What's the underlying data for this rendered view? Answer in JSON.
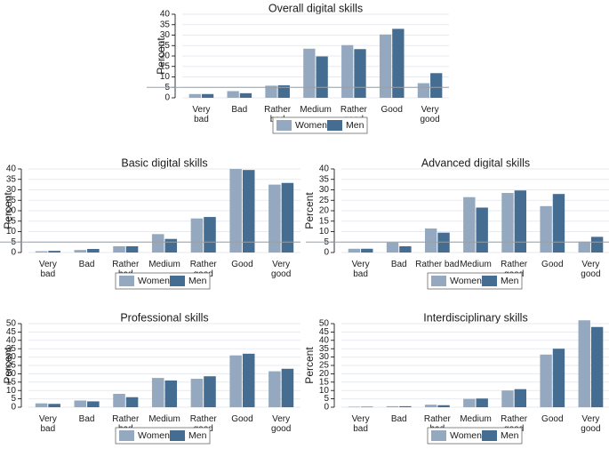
{
  "colors": {
    "women": "#94a8bf",
    "men": "#456c91",
    "grid": "#e6eaef",
    "axis": "#000000",
    "refline": "#9aa0a6"
  },
  "chart_data": [
    {
      "type": "bar",
      "title": "Overall digital skills",
      "ylabel": "Percent",
      "ylim": [
        0,
        40
      ],
      "yticks": [
        0,
        5,
        10,
        15,
        20,
        25,
        30,
        35,
        40
      ],
      "reference_line": 5,
      "categories": [
        [
          "Very",
          "bad"
        ],
        [
          "Bad"
        ],
        [
          "Rather",
          "bad"
        ],
        [
          "Medium"
        ],
        [
          "Rather",
          "good"
        ],
        [
          "Good"
        ],
        [
          "Very",
          "good"
        ]
      ],
      "series": [
        {
          "name": "Women",
          "values": [
            1.8,
            3.2,
            5.8,
            23.5,
            25.2,
            30.3,
            7.0
          ]
        },
        {
          "name": "Men",
          "values": [
            1.8,
            2.2,
            6.0,
            19.8,
            23.3,
            33.0,
            11.8
          ]
        }
      ],
      "legend": "bottom"
    },
    {
      "type": "bar",
      "title": "Basic digital skills",
      "ylabel": "Percent",
      "ylim": [
        0,
        40
      ],
      "yticks": [
        0,
        5,
        10,
        15,
        20,
        25,
        30,
        35,
        40
      ],
      "reference_line": 5,
      "categories": [
        [
          "Very",
          "bad"
        ],
        [
          "Bad"
        ],
        [
          "Rather",
          "bad"
        ],
        [
          "Medium"
        ],
        [
          "Rather",
          "good"
        ],
        [
          "Good"
        ],
        [
          "Very",
          "good"
        ]
      ],
      "series": [
        {
          "name": "Women",
          "values": [
            0.6,
            1.2,
            3.0,
            8.8,
            16.3,
            40.0,
            32.5
          ]
        },
        {
          "name": "Men",
          "values": [
            0.8,
            1.7,
            3.0,
            6.5,
            17.0,
            39.5,
            33.3
          ]
        }
      ],
      "legend": "bottom"
    },
    {
      "type": "bar",
      "title": "Advanced digital skills",
      "ylabel": "Percent",
      "ylim": [
        0,
        40
      ],
      "yticks": [
        0,
        5,
        10,
        15,
        20,
        25,
        30,
        35,
        40
      ],
      "reference_line": 5,
      "categories": [
        [
          "Very",
          "bad"
        ],
        [
          "Bad"
        ],
        [
          "Rather bad"
        ],
        [
          "Medium"
        ],
        [
          "Rather",
          "good"
        ],
        [
          "Good"
        ],
        [
          "Very",
          "good"
        ]
      ],
      "series": [
        {
          "name": "Women",
          "values": [
            1.8,
            4.8,
            11.5,
            26.5,
            28.5,
            22.2,
            5.2
          ]
        },
        {
          "name": "Men",
          "values": [
            1.8,
            3.0,
            9.5,
            21.5,
            29.7,
            28.0,
            7.5
          ]
        }
      ],
      "legend": "bottom"
    },
    {
      "type": "bar",
      "title": "Professional skills",
      "ylabel": "Percent",
      "ylim": [
        0,
        50
      ],
      "yticks": [
        0,
        5,
        10,
        15,
        20,
        25,
        30,
        35,
        40,
        45,
        50
      ],
      "categories": [
        [
          "Very",
          "bad"
        ],
        [
          "Bad"
        ],
        [
          "Rather",
          "bad"
        ],
        [
          "Medium"
        ],
        [
          "Rather",
          "good"
        ],
        [
          "Good"
        ],
        [
          "Very",
          "good"
        ]
      ],
      "series": [
        {
          "name": "Women",
          "values": [
            2.3,
            4.0,
            8.0,
            17.5,
            17.0,
            31.0,
            21.5
          ]
        },
        {
          "name": "Men",
          "values": [
            2.0,
            3.5,
            6.0,
            16.0,
            18.5,
            32.0,
            23.0
          ]
        }
      ],
      "legend": "bottom"
    },
    {
      "type": "bar",
      "title": "Interdisciplinary skills",
      "ylabel": "Percent",
      "ylim": [
        0,
        50
      ],
      "yticks": [
        0,
        5,
        10,
        15,
        20,
        25,
        30,
        35,
        40,
        45,
        50
      ],
      "categories": [
        [
          "Very",
          "bad"
        ],
        [
          "Bad"
        ],
        [
          "Rather",
          "bad"
        ],
        [
          "Medium"
        ],
        [
          "Rather",
          "good"
        ],
        [
          "Good"
        ],
        [
          "Very",
          "good"
        ]
      ],
      "series": [
        {
          "name": "Women",
          "values": [
            0.3,
            0.6,
            1.5,
            5.0,
            10.0,
            31.5,
            52.0
          ]
        },
        {
          "name": "Men",
          "values": [
            0.3,
            0.6,
            1.2,
            5.2,
            10.8,
            35.0,
            48.0
          ]
        }
      ],
      "legend": "bottom"
    }
  ]
}
